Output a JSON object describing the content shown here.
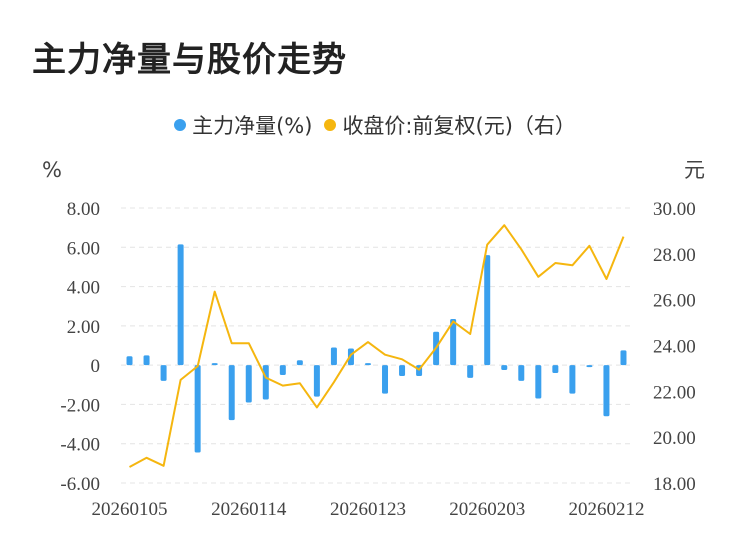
{
  "title": "主力净量与股价走势",
  "legend": {
    "net": "主力净量(%)",
    "price": "收盘价:前复权(元)（右）"
  },
  "colors": {
    "bar": "#3aa0ee",
    "line": "#f5b60f",
    "grid": "#e4e4e4"
  },
  "chart_data": {
    "type": "bar+line",
    "title": "主力净量与股价走势",
    "left_unit": "%",
    "right_unit": "元",
    "left_ylim": [
      -6,
      8
    ],
    "right_ylim": [
      18,
      30
    ],
    "left_ticks": [
      "8.00",
      "6.00",
      "4.00",
      "2.00",
      "0",
      "-2.00",
      "-4.00",
      "-6.00"
    ],
    "right_ticks": [
      "30.00",
      "28.00",
      "26.00",
      "24.00",
      "22.00",
      "20.00",
      "18.00"
    ],
    "x_labels": [
      "20260105",
      "20260114",
      "20260123",
      "20260203",
      "20260212"
    ],
    "x_label_index": [
      0,
      7,
      14,
      21,
      28
    ],
    "grid": true,
    "legend_position": "top",
    "series": [
      {
        "name": "主力净量(%)",
        "type": "bar",
        "values": [
          0.45,
          0.5,
          -0.8,
          6.15,
          -4.45,
          0.1,
          -2.8,
          -1.9,
          -1.75,
          -0.5,
          0.25,
          -1.6,
          0.9,
          0.85,
          0.1,
          -1.45,
          -0.55,
          -0.55,
          1.7,
          2.35,
          -0.65,
          5.6,
          -0.25,
          -0.8,
          -1.7,
          -0.4,
          -1.45,
          -0.1,
          -2.6,
          0.75
        ]
      },
      {
        "name": "收盘价:前复权(元)（右）",
        "type": "line",
        "values": [
          18.7,
          19.1,
          18.75,
          22.5,
          23.1,
          26.35,
          24.1,
          24.1,
          22.6,
          22.25,
          22.35,
          21.3,
          22.4,
          23.6,
          24.15,
          23.6,
          23.4,
          22.95,
          23.9,
          25.05,
          24.5,
          28.4,
          29.25,
          28.2,
          27.0,
          27.6,
          27.5,
          28.35,
          26.9,
          28.75
        ]
      }
    ]
  }
}
